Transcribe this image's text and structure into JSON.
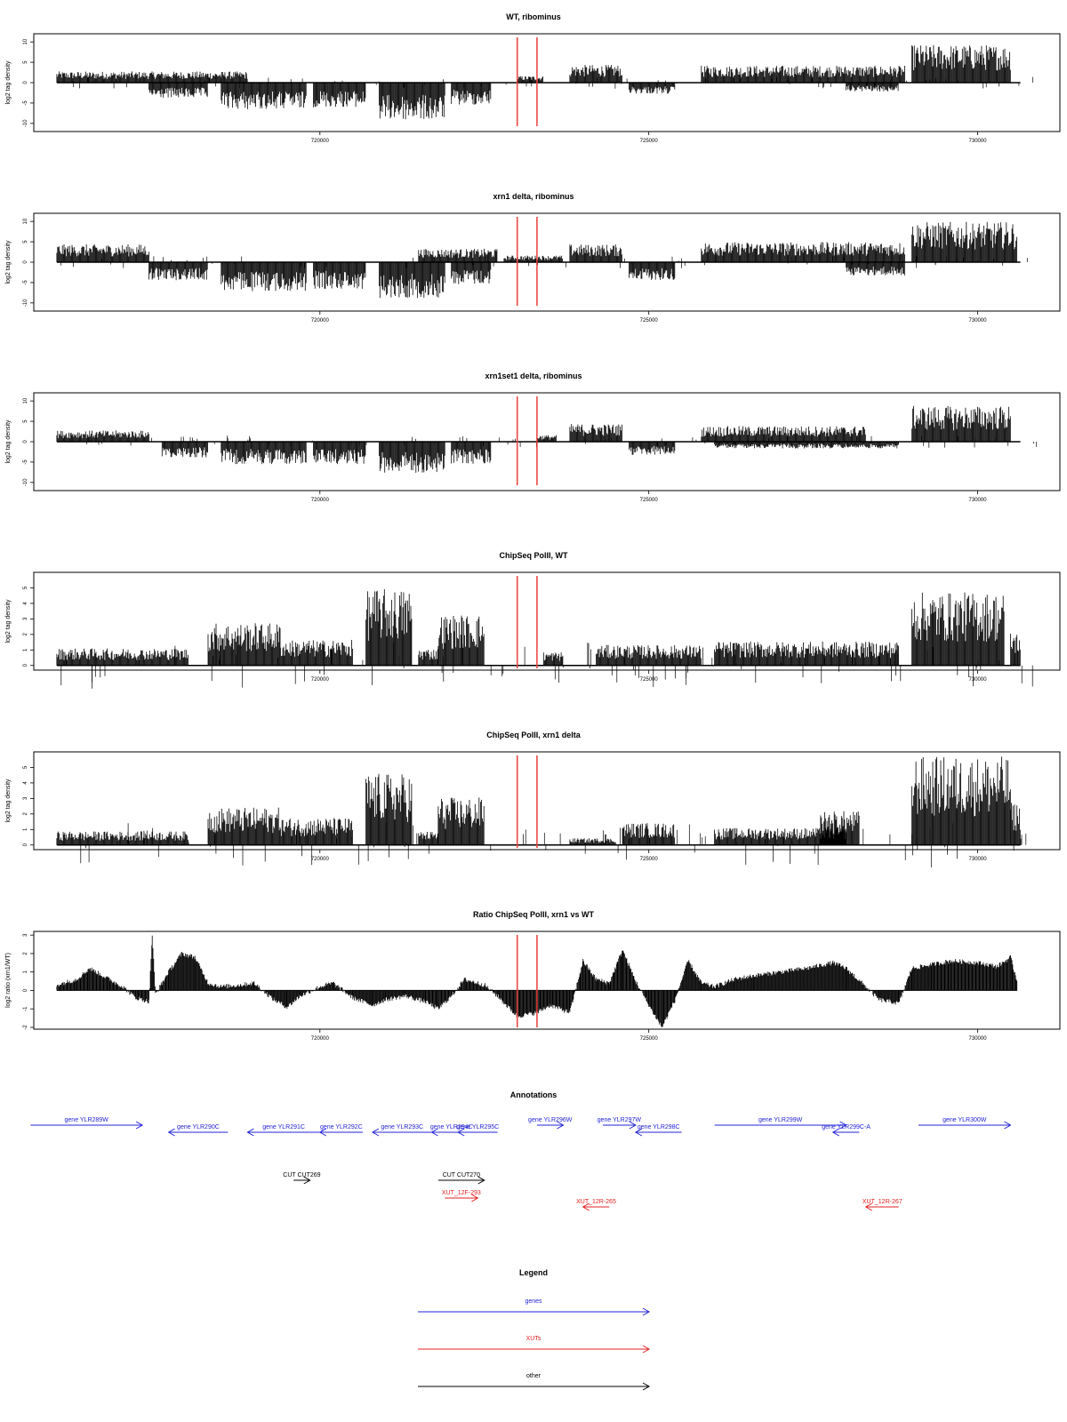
{
  "chart_data": [
    {
      "type": "bar",
      "title": "WT, ribominus",
      "ylabel": "log2 tag density",
      "xlim": [
        715650,
        731250
      ],
      "ylim": [
        -12,
        12
      ],
      "yticks": [
        -10,
        -5,
        0,
        5,
        10
      ],
      "xticks": [
        720000,
        725000,
        730000
      ],
      "marker_lines": [
        723000,
        723300
      ],
      "marker_color": "#e8413a",
      "profile": {
        "positive": [
          [
            716000,
            718900,
            2.5
          ],
          [
            723000,
            723400,
            1.5
          ],
          [
            723800,
            724600,
            4
          ],
          [
            725800,
            728900,
            3.8
          ],
          [
            729000,
            730500,
            8.5
          ]
        ],
        "negative": [
          [
            717400,
            718300,
            -3.5
          ],
          [
            718500,
            719800,
            -6
          ],
          [
            719900,
            720700,
            -5.5
          ],
          [
            720900,
            721900,
            -8.5
          ],
          [
            722000,
            722600,
            -5
          ],
          [
            724700,
            725400,
            -2.5
          ],
          [
            728000,
            728800,
            -2
          ]
        ]
      }
    },
    {
      "type": "bar",
      "title": "xrn1 delta, ribominus",
      "ylabel": "log2 tag density",
      "xlim": [
        715650,
        731250
      ],
      "ylim": [
        -12,
        12
      ],
      "yticks": [
        -10,
        -5,
        0,
        5,
        10
      ],
      "xticks": [
        720000,
        725000,
        730000
      ],
      "marker_lines": [
        723000,
        723300
      ],
      "marker_color": "#e8413a",
      "profile": {
        "positive": [
          [
            716000,
            717400,
            4
          ],
          [
            721500,
            722700,
            3
          ],
          [
            722800,
            723700,
            1.5
          ],
          [
            723800,
            724600,
            4
          ],
          [
            725800,
            728900,
            4.5
          ],
          [
            729000,
            730600,
            9
          ]
        ],
        "negative": [
          [
            717400,
            718300,
            -4
          ],
          [
            718500,
            719800,
            -6.5
          ],
          [
            719900,
            720700,
            -6
          ],
          [
            720900,
            721900,
            -8
          ],
          [
            722000,
            722600,
            -5
          ],
          [
            724700,
            725400,
            -4
          ],
          [
            728000,
            728900,
            -3
          ]
        ]
      }
    },
    {
      "type": "bar",
      "title": "xrn1set1 delta, ribominus",
      "ylabel": "log2 tag density",
      "xlim": [
        715650,
        731250
      ],
      "ylim": [
        -12,
        12
      ],
      "yticks": [
        -10,
        -5,
        0,
        5,
        10
      ],
      "xticks": [
        720000,
        725000,
        730000
      ],
      "marker_lines": [
        723000,
        723300
      ],
      "marker_color": "#e8413a",
      "profile": {
        "positive": [
          [
            716000,
            717400,
            2.5
          ],
          [
            723300,
            723600,
            1.5
          ],
          [
            723800,
            724600,
            4
          ],
          [
            725800,
            728300,
            3.5
          ],
          [
            729000,
            730500,
            8
          ]
        ],
        "negative": [
          [
            717600,
            718300,
            -3.5
          ],
          [
            718500,
            719800,
            -5
          ],
          [
            719900,
            720700,
            -5
          ],
          [
            720900,
            721900,
            -7
          ],
          [
            722000,
            722600,
            -5
          ],
          [
            724700,
            725400,
            -3
          ],
          [
            726000,
            728800,
            -1.5
          ]
        ]
      }
    },
    {
      "type": "bar",
      "title": "ChipSeq PolII, WT",
      "ylabel": "log2 tag density",
      "xlim": [
        715650,
        731250
      ],
      "ylim": [
        -0.3,
        6
      ],
      "yticks": [
        0,
        1,
        2,
        3,
        4,
        5
      ],
      "xticks": [
        720000,
        725000,
        730000
      ],
      "marker_lines": [
        723000,
        723300
      ],
      "marker_color": "#e8413a",
      "profile": {
        "positive": [
          [
            716000,
            718000,
            1
          ],
          [
            718300,
            719400,
            2.5
          ],
          [
            719400,
            720500,
            1.5
          ],
          [
            720700,
            721400,
            4.5
          ],
          [
            721500,
            721800,
            1
          ],
          [
            721800,
            722500,
            3
          ],
          [
            723400,
            723700,
            0.8
          ],
          [
            724200,
            725800,
            1.2
          ],
          [
            726000,
            728800,
            1.4
          ],
          [
            729000,
            730400,
            4.3
          ],
          [
            730500,
            730650,
            2
          ]
        ],
        "negative": []
      }
    },
    {
      "type": "bar",
      "title": "ChipSeq PolII, xrn1 delta",
      "ylabel": "log2 tag density",
      "xlim": [
        715650,
        731250
      ],
      "ylim": [
        -0.3,
        6
      ],
      "yticks": [
        0,
        1,
        2,
        3,
        4,
        5
      ],
      "xticks": [
        720000,
        725000,
        730000
      ],
      "marker_lines": [
        723000,
        723300
      ],
      "marker_color": "#e8413a",
      "profile": {
        "positive": [
          [
            716000,
            718000,
            0.8
          ],
          [
            718300,
            719400,
            2.2
          ],
          [
            719400,
            720500,
            1.6
          ],
          [
            720700,
            721400,
            4.2
          ],
          [
            721500,
            721800,
            0.8
          ],
          [
            721800,
            722500,
            2.8
          ],
          [
            723800,
            724500,
            0.4
          ],
          [
            724600,
            725400,
            1.3
          ],
          [
            726000,
            728000,
            1
          ],
          [
            727600,
            728200,
            2
          ],
          [
            729000,
            730500,
            5.2
          ],
          [
            730500,
            730650,
            2.5
          ]
        ],
        "negative": []
      }
    },
    {
      "type": "area",
      "title": "Ratio ChipSeq PolII, xrn1 vs WT",
      "ylabel": "log2 ratio (xrn1/WT)",
      "xlim": [
        715650,
        731250
      ],
      "ylim": [
        -2.1,
        3.2
      ],
      "yticks": [
        -2,
        -1,
        0,
        1,
        2,
        3
      ],
      "xticks": [
        720000,
        725000,
        730000
      ],
      "marker_lines": [
        723000,
        723300
      ],
      "marker_color": "#e8413a",
      "x": [
        716000,
        716300,
        716500,
        716800,
        717000,
        717200,
        717400,
        717450,
        717500,
        717700,
        717900,
        718100,
        718300,
        718500,
        718800,
        719000,
        719300,
        719500,
        719700,
        720000,
        720200,
        720500,
        720800,
        721000,
        721300,
        721600,
        721800,
        722000,
        722200,
        722500,
        722700,
        723000,
        723300,
        723500,
        723800,
        724000,
        724200,
        724400,
        724600,
        724800,
        725000,
        725200,
        725400,
        725600,
        725800,
        726000,
        726300,
        726600,
        727000,
        727400,
        727800,
        728000,
        728300,
        728500,
        728800,
        729000,
        729300,
        729600,
        730000,
        730300,
        730500,
        730600
      ],
      "y": [
        0.3,
        0.6,
        1.2,
        0.6,
        0.2,
        -0.4,
        -0.6,
        3.0,
        -0.2,
        1.0,
        2.0,
        1.8,
        0.4,
        0.2,
        0.3,
        0.4,
        -0.5,
        -0.9,
        -0.3,
        0.2,
        0.4,
        -0.4,
        -0.8,
        -0.5,
        -0.3,
        -0.6,
        -1.0,
        -0.3,
        0.6,
        0.3,
        -0.3,
        -1.4,
        -1.2,
        -0.8,
        -1.2,
        1.6,
        0.6,
        0.4,
        2.2,
        0.5,
        -0.8,
        -2.0,
        -0.5,
        1.6,
        0.4,
        0.2,
        0.6,
        0.8,
        1.0,
        1.2,
        1.5,
        1.2,
        0.2,
        -0.5,
        -0.7,
        1.2,
        1.4,
        1.6,
        1.5,
        1.3,
        1.8,
        0.5
      ]
    }
  ],
  "annotations": {
    "title": "Annotations",
    "genes": [
      {
        "label": "gene YLR289W",
        "start": 715600,
        "end": 717300,
        "strand": "+",
        "row": 0
      },
      {
        "label": "gene YLR290C",
        "start": 717700,
        "end": 718600,
        "strand": "-",
        "row": 1
      },
      {
        "label": "gene YLR291C",
        "start": 718900,
        "end": 720000,
        "strand": "-",
        "row": 1
      },
      {
        "label": "gene YLR292C",
        "start": 720000,
        "end": 720650,
        "strand": "-",
        "row": 1
      },
      {
        "label": "gene YLR293C",
        "start": 720800,
        "end": 721700,
        "strand": "-",
        "row": 1
      },
      {
        "label": "gene YLR294C",
        "start": 721700,
        "end": 722300,
        "strand": "-",
        "row": 1
      },
      {
        "label": "gene YLR295C",
        "start": 722100,
        "end": 722700,
        "strand": "-",
        "row": 1
      },
      {
        "label": "gene YLR296W",
        "start": 723300,
        "end": 723700,
        "strand": "+",
        "row": 0
      },
      {
        "label": "gene YLR297W",
        "start": 724300,
        "end": 724800,
        "strand": "+",
        "row": 0
      },
      {
        "label": "gene YLR298C",
        "start": 724800,
        "end": 725500,
        "strand": "-",
        "row": 1
      },
      {
        "label": "gene YLR299W",
        "start": 726000,
        "end": 728000,
        "strand": "+",
        "row": 0
      },
      {
        "label": "gene YLR299C-A",
        "start": 727800,
        "end": 728200,
        "strand": "-",
        "row": 1
      },
      {
        "label": "gene YLR300W",
        "start": 729100,
        "end": 730500,
        "strand": "+",
        "row": 0
      }
    ],
    "cuts": [
      {
        "label": "CUT CUT269",
        "start": 719600,
        "end": 719850,
        "strand": "+",
        "row": 2
      },
      {
        "label": "CUT CUT270",
        "start": 721800,
        "end": 722500,
        "strand": "+",
        "row": 2
      }
    ],
    "xuts": [
      {
        "label": "XUT_12F-293",
        "start": 721900,
        "end": 722400,
        "strand": "+",
        "row": 3
      },
      {
        "label": "XUT_12R-265",
        "start": 724000,
        "end": 724400,
        "strand": "-",
        "row": 4
      },
      {
        "label": "XUT_12R-267",
        "start": 728300,
        "end": 728800,
        "strand": "-",
        "row": 4
      }
    ]
  },
  "legend": {
    "title": "Legend",
    "entries": [
      {
        "label": "genes",
        "color": "#2323d8"
      },
      {
        "label": "XUTs",
        "color": "#e32020"
      },
      {
        "label": "other",
        "color": "#000000"
      }
    ]
  },
  "colors": {
    "gene": "#2323d8",
    "xut": "#e32020",
    "other": "#000000",
    "bars": "#000000"
  }
}
